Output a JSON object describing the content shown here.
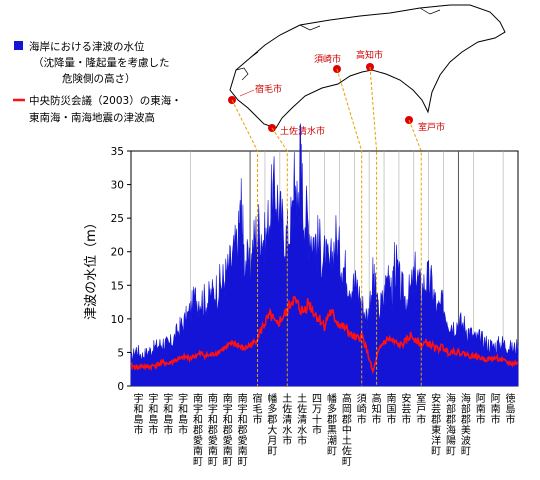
{
  "legend": {
    "items": [
      {
        "name": "blue",
        "color": "#1414d6",
        "lines": [
          "海岸における津波の水位",
          "（沈降量・隆起量を考慮した",
          "危険側の高さ）"
        ]
      },
      {
        "name": "red",
        "color": "#ff1010",
        "lines": [
          "中央防災会議（2003）の東海・",
          "東南海・南海地震の津波高"
        ]
      }
    ]
  },
  "map": {
    "cities": [
      "宿毛市",
      "土佐清水市",
      "須崎市",
      "高知市",
      "室戸市"
    ]
  },
  "chart_data": {
    "type": "area",
    "title": "",
    "xlabel": "",
    "ylabel": "津波の水位（m）",
    "ylim": [
      0,
      35
    ],
    "yticks": [
      0,
      5,
      10,
      15,
      20,
      25,
      30,
      35
    ],
    "grid": false,
    "legend_position": "top-left",
    "municipalities": [
      "宇和島市",
      "宇和島市",
      "宇和島市",
      "宇和島市",
      "南宇和郡愛南町",
      "南宇和郡愛南町",
      "南宇和郡愛南町",
      "南宇和郡愛南町",
      "宿毛市",
      "幡多郡大月町",
      "土佐清水市",
      "土佐清水市",
      "四万十市",
      "幡多郡黒潮町",
      "高岡郡中土佐町",
      "須崎市",
      "高知市",
      "南国市",
      "安芸市",
      "室戸市",
      "安芸郡東洋町",
      "海部郡海陽町",
      "海部郡美波町",
      "阿南市",
      "阿南市",
      "徳島市"
    ],
    "boundaries_after_index": [
      3,
      7,
      8,
      9,
      11,
      12,
      13,
      14,
      15,
      16,
      17,
      18,
      19,
      20,
      21,
      22,
      24
    ],
    "series": [
      {
        "name": "海岸における津波の水位（沈降量・隆起量を考慮した危険側の高さ）",
        "color": "#1414d6",
        "points": [
          [
            0,
            4
          ],
          [
            2,
            5.5
          ],
          [
            4,
            4.5
          ],
          [
            6,
            5
          ],
          [
            8,
            5.5
          ],
          [
            10,
            6
          ],
          [
            12,
            6.5
          ],
          [
            14,
            6
          ],
          [
            16,
            7
          ],
          [
            18,
            8.5
          ],
          [
            20,
            9.5
          ],
          [
            22,
            11
          ],
          [
            24,
            13
          ],
          [
            26,
            13
          ],
          [
            28,
            12.5
          ],
          [
            30,
            13.5
          ],
          [
            32,
            14.5
          ],
          [
            34,
            15.5
          ],
          [
            36,
            17
          ],
          [
            38,
            19
          ],
          [
            40,
            22
          ],
          [
            41,
            27
          ],
          [
            42,
            20
          ],
          [
            44,
            17
          ],
          [
            46,
            22
          ],
          [
            48,
            24
          ],
          [
            50,
            21
          ],
          [
            52,
            27
          ],
          [
            54,
            29
          ],
          [
            56,
            24
          ],
          [
            58,
            22
          ],
          [
            60,
            25
          ],
          [
            61,
            31
          ],
          [
            62,
            26
          ],
          [
            63,
            34.5
          ],
          [
            64,
            27
          ],
          [
            66,
            24
          ],
          [
            68,
            22
          ],
          [
            70,
            21
          ],
          [
            72,
            19
          ],
          [
            74,
            17
          ],
          [
            76,
            22
          ],
          [
            78,
            19
          ],
          [
            80,
            17
          ],
          [
            82,
            15
          ],
          [
            84,
            15
          ],
          [
            86,
            12
          ],
          [
            88,
            10
          ],
          [
            90,
            16
          ],
          [
            91,
            14
          ],
          [
            92,
            11
          ],
          [
            94,
            13
          ],
          [
            96,
            18
          ],
          [
            97,
            12
          ],
          [
            98,
            19
          ],
          [
            100,
            15
          ],
          [
            102,
            13
          ],
          [
            104,
            14
          ],
          [
            106,
            17
          ],
          [
            108,
            14
          ],
          [
            110,
            16
          ],
          [
            112,
            15
          ],
          [
            114,
            11
          ],
          [
            116,
            12
          ],
          [
            118,
            10
          ],
          [
            120,
            9
          ],
          [
            122,
            9.5
          ],
          [
            124,
            9
          ],
          [
            126,
            8
          ],
          [
            128,
            7
          ],
          [
            130,
            7
          ],
          [
            132,
            6.5
          ],
          [
            134,
            6
          ],
          [
            136,
            6
          ],
          [
            138,
            6.5
          ],
          [
            140,
            6
          ],
          [
            142,
            5.5
          ],
          [
            144,
            6
          ]
        ]
      },
      {
        "name": "中央防災会議（2003）の東海・東南海・南海地震の津波高",
        "color": "#ff1010",
        "points": [
          [
            0,
            3
          ],
          [
            2,
            2.8
          ],
          [
            4,
            3
          ],
          [
            6,
            2.8
          ],
          [
            8,
            3
          ],
          [
            10,
            3.2
          ],
          [
            12,
            3.5
          ],
          [
            14,
            3.3
          ],
          [
            16,
            3.8
          ],
          [
            18,
            4
          ],
          [
            20,
            4.3
          ],
          [
            22,
            4.2
          ],
          [
            24,
            4.5
          ],
          [
            26,
            4.8
          ],
          [
            28,
            4.5
          ],
          [
            30,
            4.6
          ],
          [
            32,
            5
          ],
          [
            34,
            5.5
          ],
          [
            36,
            5.8
          ],
          [
            38,
            6.5
          ],
          [
            40,
            6
          ],
          [
            42,
            5.5
          ],
          [
            44,
            6
          ],
          [
            46,
            6.5
          ],
          [
            48,
            8
          ],
          [
            50,
            9.5
          ],
          [
            52,
            10.5
          ],
          [
            54,
            9
          ],
          [
            56,
            10
          ],
          [
            58,
            11
          ],
          [
            60,
            13
          ],
          [
            62,
            12
          ],
          [
            64,
            11
          ],
          [
            66,
            12.5
          ],
          [
            68,
            11
          ],
          [
            70,
            10
          ],
          [
            72,
            9
          ],
          [
            74,
            11
          ],
          [
            76,
            10
          ],
          [
            78,
            9
          ],
          [
            80,
            8.5
          ],
          [
            82,
            7.5
          ],
          [
            84,
            7
          ],
          [
            86,
            7.5
          ],
          [
            88,
            5
          ],
          [
            90,
            2
          ],
          [
            92,
            5
          ],
          [
            94,
            6.5
          ],
          [
            96,
            7
          ],
          [
            98,
            6.5
          ],
          [
            100,
            6
          ],
          [
            102,
            6.5
          ],
          [
            104,
            7.5
          ],
          [
            106,
            7
          ],
          [
            108,
            6
          ],
          [
            110,
            6.5
          ],
          [
            112,
            6
          ],
          [
            114,
            5.5
          ],
          [
            116,
            5.8
          ],
          [
            118,
            5
          ],
          [
            120,
            5.2
          ],
          [
            122,
            5
          ],
          [
            124,
            4.8
          ],
          [
            126,
            4.5
          ],
          [
            128,
            4.5
          ],
          [
            130,
            4.2
          ],
          [
            132,
            4
          ],
          [
            134,
            4
          ],
          [
            136,
            4.2
          ],
          [
            138,
            3.8
          ],
          [
            140,
            3.5
          ],
          [
            142,
            3.3
          ],
          [
            144,
            3.5
          ]
        ]
      }
    ]
  }
}
